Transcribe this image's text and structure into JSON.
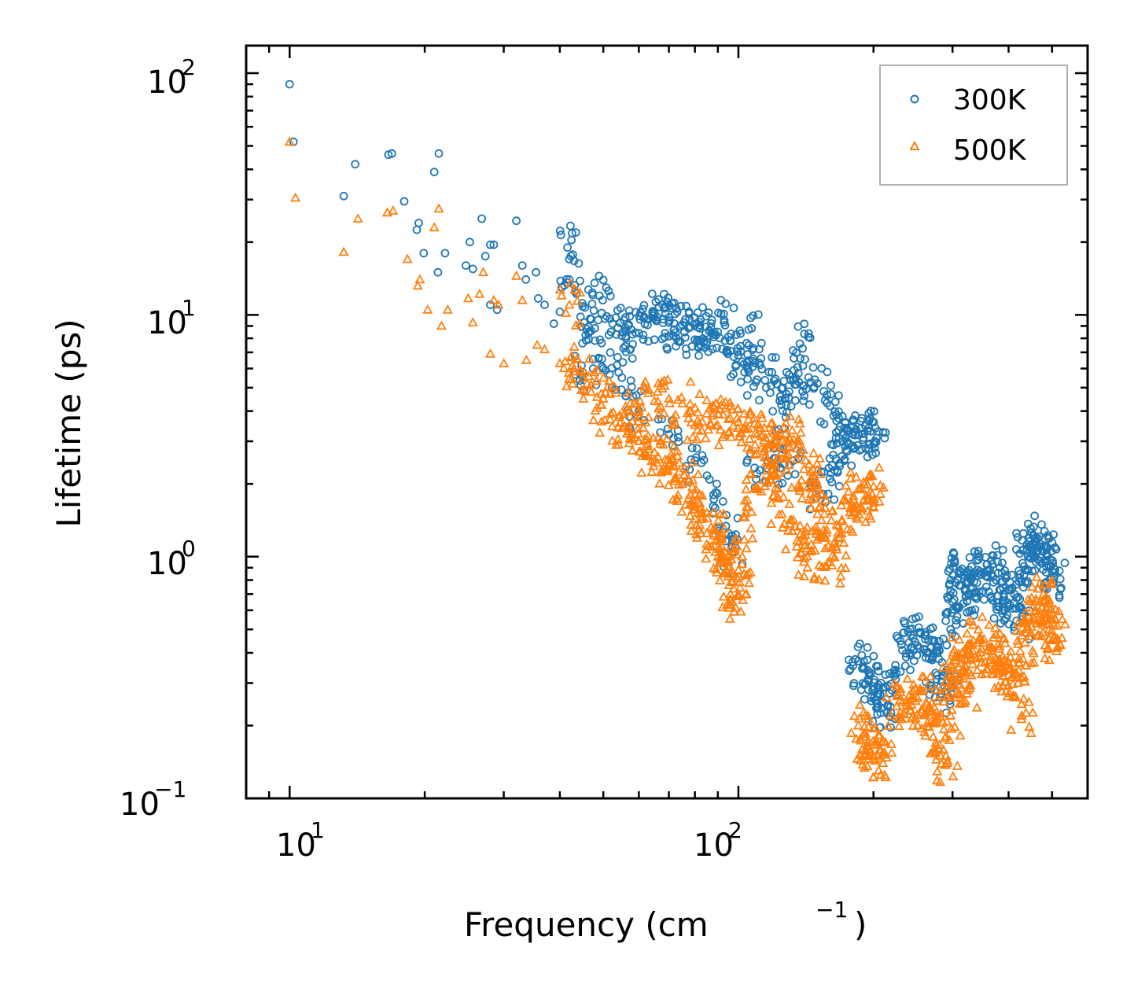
{
  "chart_data": {
    "type": "scatter",
    "xscale": "log",
    "yscale": "log",
    "xlim": [
      8,
      600
    ],
    "ylim": [
      0.1,
      130
    ],
    "xlabel_text": "Frequency (cm",
    "xlabel_unit_exp": "−1",
    "xlabel_close": ")",
    "ylabel": "Lifetime (ps)",
    "legend_position": "top-right",
    "x_ticks": [
      {
        "value": 10,
        "base": "10",
        "exp": "1"
      },
      {
        "value": 100,
        "base": "10",
        "exp": "2"
      }
    ],
    "y_ticks": [
      {
        "value": 0.1,
        "base": "10",
        "exp": "−1"
      },
      {
        "value": 1,
        "base": "10",
        "exp": "0"
      },
      {
        "value": 10,
        "base": "10",
        "exp": "1"
      },
      {
        "value": 100,
        "base": "10",
        "exp": "2"
      }
    ],
    "series": [
      {
        "name": "300K",
        "color": "#1f77b4",
        "marker": "circle",
        "points": [
          [
            10,
            90
          ],
          [
            10.2,
            52
          ],
          [
            14,
            42
          ],
          [
            13.2,
            31
          ],
          [
            16.6,
            46
          ],
          [
            16.9,
            46.5
          ],
          [
            18,
            29.5
          ],
          [
            19.2,
            22.5
          ],
          [
            19.4,
            24
          ],
          [
            19.9,
            18
          ],
          [
            21,
            39
          ],
          [
            21.5,
            46.5
          ],
          [
            22.2,
            18
          ],
          [
            21.4,
            15
          ],
          [
            24.7,
            16
          ],
          [
            25.2,
            20
          ],
          [
            25.6,
            15.5
          ],
          [
            26.8,
            25
          ],
          [
            27.3,
            17.5
          ],
          [
            28,
            19.5
          ],
          [
            28.5,
            19.5
          ],
          [
            29,
            10.5
          ],
          [
            28,
            11
          ],
          [
            32,
            24.5
          ],
          [
            33,
            16
          ],
          [
            33.6,
            14
          ],
          [
            35.4,
            15
          ],
          [
            35.8,
            11.7
          ],
          [
            37,
            11
          ],
          [
            38.8,
            9.2
          ],
          [
            40,
            10.3
          ],
          [
            41.6,
            19
          ],
          [
            42,
            14
          ],
          [
            45.3,
            9.3
          ],
          [
            47,
            9.6
          ],
          [
            49,
            12
          ],
          [
            52,
            8.5
          ],
          [
            55,
            8.2
          ],
          [
            57,
            9.1
          ],
          [
            60,
            8.4
          ],
          [
            63,
            9.6
          ],
          [
            65,
            10.2
          ],
          [
            68,
            9.6
          ],
          [
            70,
            9.3
          ],
          [
            72,
            8.7
          ],
          [
            75,
            9.1
          ],
          [
            78,
            8.9
          ],
          [
            80,
            7.9
          ],
          [
            82,
            8.8
          ],
          [
            86,
            8.6
          ],
          [
            90,
            8.5
          ],
          [
            93,
            9.5
          ],
          [
            96,
            7.1
          ],
          [
            100,
            6.8
          ],
          [
            102,
            6.4
          ],
          [
            107,
            8.8
          ],
          [
            110,
            5.4
          ],
          [
            117,
            5.8
          ],
          [
            124,
            4.6
          ],
          [
            128,
            4.7
          ],
          [
            133,
            5.4
          ],
          [
            137,
            7.6
          ],
          [
            140,
            5.1
          ],
          [
            150,
            5.2
          ],
          [
            160,
            4.2
          ],
          [
            165,
            3.1
          ],
          [
            175,
            3.3
          ],
          [
            180,
            3.2
          ],
          [
            190,
            3.1
          ],
          [
            195,
            3.4
          ],
          [
            197,
            3.3
          ],
          [
            202,
            3.4
          ],
          [
            150,
            1.9
          ],
          [
            160,
            2.1
          ],
          [
            170,
            2.6
          ],
          [
            130,
            2.4
          ],
          [
            120,
            2.8
          ],
          [
            110,
            2.2
          ],
          [
            97,
            1.1
          ],
          [
            95,
            1.25
          ],
          [
            88,
            1.8
          ],
          [
            80,
            2.5
          ],
          [
            70,
            3.2
          ],
          [
            60,
            4.0
          ],
          [
            55,
            5.5
          ],
          [
            50,
            6.0
          ],
          [
            45,
            5.8
          ],
          [
            185,
            0.37
          ],
          [
            190,
            0.35
          ],
          [
            195,
            0.31
          ],
          [
            200,
            0.29
          ],
          [
            205,
            0.27
          ],
          [
            210,
            0.25
          ],
          [
            215,
            0.24
          ],
          [
            225,
            0.33
          ],
          [
            232,
            0.41
          ],
          [
            240,
            0.44
          ],
          [
            245,
            0.46
          ],
          [
            255,
            0.48
          ],
          [
            262,
            0.47
          ],
          [
            270,
            0.38
          ],
          [
            275,
            0.33
          ],
          [
            282,
            0.29
          ],
          [
            292,
            0.27
          ],
          [
            297,
            0.5
          ],
          [
            300,
            0.65
          ],
          [
            305,
            0.78
          ],
          [
            310,
            0.85
          ],
          [
            315,
            0.89
          ],
          [
            320,
            0.72
          ],
          [
            325,
            0.7
          ],
          [
            330,
            0.8
          ],
          [
            340,
            0.78
          ],
          [
            345,
            0.87
          ],
          [
            360,
            0.88
          ],
          [
            368,
            0.93
          ],
          [
            375,
            0.8
          ],
          [
            382,
            0.73
          ],
          [
            390,
            0.64
          ],
          [
            400,
            0.62
          ],
          [
            412,
            0.7
          ],
          [
            420,
            0.68
          ],
          [
            428,
            0.55
          ],
          [
            435,
            0.88
          ],
          [
            440,
            1.07
          ],
          [
            450,
            1.1
          ],
          [
            460,
            1.2
          ],
          [
            470,
            1.13
          ],
          [
            478,
            1.05
          ],
          [
            485,
            1.02
          ],
          [
            492,
            0.92
          ],
          [
            500,
            0.87
          ],
          [
            505,
            0.82
          ]
        ]
      },
      {
        "name": "500K",
        "color": "#ff7f0e",
        "marker": "triangle",
        "points": [
          [
            10,
            52
          ],
          [
            10.3,
            30.5
          ],
          [
            13.2,
            18.2
          ],
          [
            14.2,
            25
          ],
          [
            16.5,
            26.5
          ],
          [
            17,
            27
          ],
          [
            18.3,
            17
          ],
          [
            19.3,
            13.2
          ],
          [
            19.5,
            14
          ],
          [
            20.3,
            10.5
          ],
          [
            21,
            23
          ],
          [
            21.5,
            27.5
          ],
          [
            21.8,
            9
          ],
          [
            22.5,
            10.5
          ],
          [
            25,
            11.7
          ],
          [
            25.6,
            9.3
          ],
          [
            26.5,
            12.2
          ],
          [
            27,
            15
          ],
          [
            28,
            6.9
          ],
          [
            28.5,
            11.5
          ],
          [
            29.2,
            11
          ],
          [
            30,
            6.3
          ],
          [
            32,
            14.5
          ],
          [
            33,
            11.5
          ],
          [
            33.7,
            6.5
          ],
          [
            35.6,
            7.5
          ],
          [
            37,
            7.2
          ],
          [
            40,
            6.3
          ],
          [
            42,
            11
          ],
          [
            43,
            6
          ],
          [
            45,
            5.5
          ],
          [
            47,
            4.8
          ],
          [
            50,
            4.5
          ],
          [
            52,
            3.9
          ],
          [
            55,
            3.4
          ],
          [
            57,
            3.3
          ],
          [
            60,
            3.0
          ],
          [
            62,
            2.7
          ],
          [
            65,
            2.7
          ],
          [
            68,
            2.9
          ],
          [
            70,
            2.4
          ],
          [
            72,
            2.1
          ],
          [
            75,
            2.0
          ],
          [
            78,
            1.8
          ],
          [
            80,
            1.6
          ],
          [
            82,
            1.35
          ],
          [
            85,
            1.25
          ],
          [
            87,
            1.1
          ],
          [
            88,
            1.3
          ],
          [
            90,
            1.0
          ],
          [
            93,
            1.05
          ],
          [
            95,
            1.0
          ],
          [
            96,
            0.7
          ],
          [
            97,
            0.65
          ],
          [
            100,
            0.7
          ],
          [
            102,
            1.0
          ],
          [
            105,
            1.6
          ],
          [
            110,
            1.9
          ],
          [
            115,
            2.6
          ],
          [
            120,
            2.2
          ],
          [
            125,
            1.5
          ],
          [
            130,
            1.65
          ],
          [
            135,
            1.1
          ],
          [
            140,
            0.95
          ],
          [
            145,
            1.05
          ],
          [
            150,
            1.5
          ],
          [
            155,
            1.2
          ],
          [
            160,
            0.95
          ],
          [
            165,
            1.1
          ],
          [
            170,
            1.4
          ],
          [
            175,
            1.3
          ],
          [
            180,
            1.6
          ],
          [
            185,
            1.9
          ],
          [
            190,
            1.7
          ],
          [
            195,
            1.8
          ],
          [
            200,
            1.95
          ],
          [
            60,
            4.0
          ],
          [
            65,
            4.4
          ],
          [
            70,
            4.5
          ],
          [
            75,
            4.3
          ],
          [
            80,
            3.5
          ],
          [
            85,
            3.9
          ],
          [
            90,
            3.5
          ],
          [
            95,
            3.7
          ],
          [
            100,
            3.6
          ],
          [
            105,
            3.4
          ],
          [
            110,
            3.2
          ],
          [
            115,
            3.1
          ],
          [
            120,
            2.9
          ],
          [
            125,
            2.7
          ],
          [
            130,
            3.1
          ],
          [
            135,
            2.8
          ],
          [
            140,
            2.3
          ],
          [
            145,
            2.1
          ],
          [
            150,
            2.0
          ],
          [
            185,
            0.2
          ],
          [
            190,
            0.18
          ],
          [
            195,
            0.16
          ],
          [
            200,
            0.15
          ],
          [
            205,
            0.15
          ],
          [
            210,
            0.14
          ],
          [
            225,
            0.24
          ],
          [
            232,
            0.25
          ],
          [
            240,
            0.24
          ],
          [
            245,
            0.26
          ],
          [
            255,
            0.28
          ],
          [
            262,
            0.25
          ],
          [
            270,
            0.21
          ],
          [
            275,
            0.17
          ],
          [
            282,
            0.15
          ],
          [
            292,
            0.14
          ],
          [
            297,
            0.22
          ],
          [
            300,
            0.3
          ],
          [
            305,
            0.33
          ],
          [
            310,
            0.35
          ],
          [
            315,
            0.4
          ],
          [
            320,
            0.33
          ],
          [
            325,
            0.28
          ],
          [
            330,
            0.38
          ],
          [
            340,
            0.44
          ],
          [
            345,
            0.46
          ],
          [
            360,
            0.41
          ],
          [
            368,
            0.42
          ],
          [
            375,
            0.38
          ],
          [
            382,
            0.33
          ],
          [
            390,
            0.32
          ],
          [
            400,
            0.34
          ],
          [
            412,
            0.33
          ],
          [
            420,
            0.3
          ],
          [
            428,
            0.22
          ],
          [
            435,
            0.44
          ],
          [
            440,
            0.5
          ],
          [
            450,
            0.55
          ],
          [
            460,
            0.6
          ],
          [
            470,
            0.65
          ],
          [
            478,
            0.7
          ],
          [
            485,
            0.55
          ],
          [
            492,
            0.5
          ],
          [
            500,
            0.45
          ],
          [
            505,
            0.52
          ]
        ]
      }
    ]
  }
}
